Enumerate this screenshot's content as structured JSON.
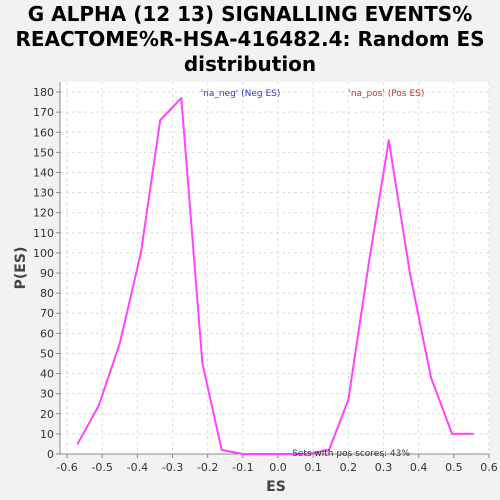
{
  "chart_data": {
    "type": "line",
    "title_lines": [
      "G ALPHA (12 13) SIGNALLING EVENTS%",
      "REACTOME%R-HSA-416482.4: Random ES",
      "distribution"
    ],
    "xlabel": "ES",
    "ylabel": "P(ES)",
    "xlim": [
      -0.62,
      0.6
    ],
    "ylim": [
      0,
      185
    ],
    "x_ticks": [
      -0.6,
      -0.5,
      -0.4,
      -0.3,
      -0.2,
      -0.1,
      0.0,
      0.1,
      0.2,
      0.3,
      0.4,
      0.5,
      0.6
    ],
    "x_tick_labels": [
      "-0.6",
      "-0.5",
      "-0.4",
      "-0.3",
      "-0.2",
      "-0.1",
      "0.0",
      "0.1",
      "0.2",
      "0.3",
      "0.4",
      "0.5",
      "0.6"
    ],
    "y_ticks": [
      0,
      10,
      20,
      30,
      40,
      50,
      60,
      70,
      80,
      90,
      100,
      110,
      120,
      130,
      140,
      150,
      160,
      170,
      180
    ],
    "grid": true,
    "line_color": "#ff44ff",
    "series": [
      {
        "x": [
          -0.57,
          -0.51,
          -0.45,
          -0.39,
          -0.335,
          -0.275,
          -0.215,
          -0.16,
          -0.1,
          -0.04,
          0.02,
          0.08,
          0.145,
          0.2,
          0.26,
          0.315,
          0.375,
          0.435,
          0.495,
          0.555
        ],
        "y": [
          5,
          24,
          55,
          100,
          166,
          177,
          45,
          2,
          0,
          0,
          0,
          0,
          2,
          27,
          97,
          156,
          90,
          38,
          10,
          10
        ]
      }
    ],
    "annotations": [
      {
        "text": "'na_neg' (Neg ES)",
        "color": "#3333cc",
        "x": -0.22,
        "y": 180
      },
      {
        "text": "'na_pos' (Pos ES)",
        "color": "#cc3333",
        "x": 0.2,
        "y": 180
      },
      {
        "text": "Sets with pos scores: 43%",
        "color": "#333333",
        "x": 0.04,
        "y": 1
      }
    ]
  }
}
